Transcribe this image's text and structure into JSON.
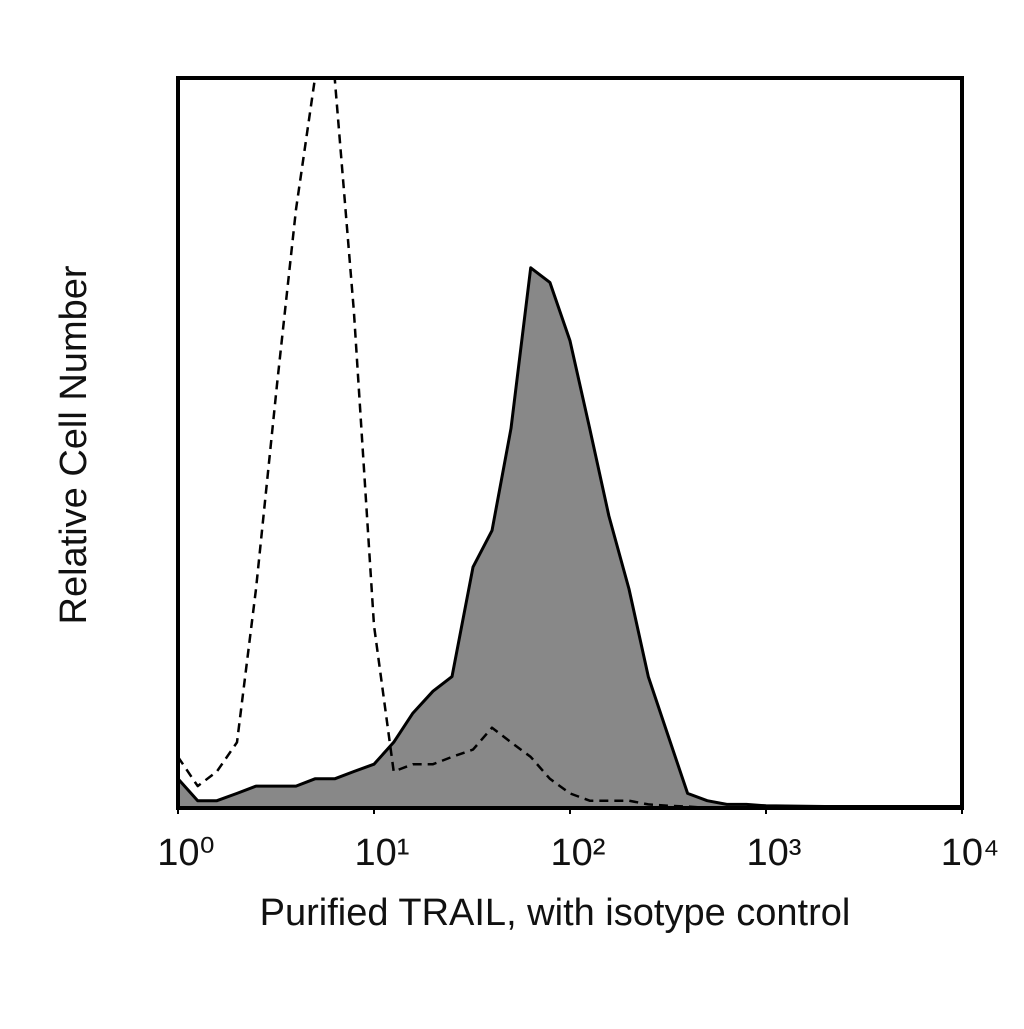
{
  "chart_data": {
    "type": "area",
    "x_label": "Purified TRAIL, with isotype control",
    "y_label": "Relative Cell Number",
    "x_log": true,
    "xlim": [
      1,
      10000
    ],
    "ylim": [
      0,
      100
    ],
    "xticks": [
      {
        "value": 1,
        "label": "10⁰"
      },
      {
        "value": 10,
        "label": "10¹"
      },
      {
        "value": 100,
        "label": "10²"
      },
      {
        "value": 1000,
        "label": "10³"
      },
      {
        "value": 10000,
        "label": "10⁴"
      }
    ],
    "x": [
      1,
      1.26,
      1.58,
      2,
      2.5,
      3.2,
      4,
      5,
      6.3,
      7.9,
      10,
      12.6,
      15.8,
      20,
      25,
      32,
      40,
      50,
      63,
      79,
      100,
      126,
      158,
      200,
      251,
      316,
      398,
      501,
      631,
      794,
      1000,
      2000,
      5000,
      10000
    ],
    "series": [
      {
        "color": "#888888",
        "fill": true,
        "values": [
          4,
          1,
          1,
          2,
          3,
          3,
          3,
          4,
          4,
          5,
          6,
          9,
          13,
          16,
          18,
          33,
          38,
          52,
          74,
          72,
          64,
          52,
          40,
          30,
          18,
          10,
          2,
          1,
          0.5,
          0.5,
          0.3,
          0.2,
          0.2,
          0.2
        ]
      },
      {
        "color": "#000000",
        "dash": true,
        "values": [
          7,
          3,
          5,
          9,
          30,
          58,
          82,
          100,
          100,
          68,
          25,
          5,
          6,
          6,
          7,
          8,
          11,
          9,
          7,
          4,
          2,
          1,
          1,
          1,
          0.5,
          0.3,
          0.2,
          0,
          0,
          0,
          0,
          0,
          0,
          0
        ]
      }
    ]
  }
}
